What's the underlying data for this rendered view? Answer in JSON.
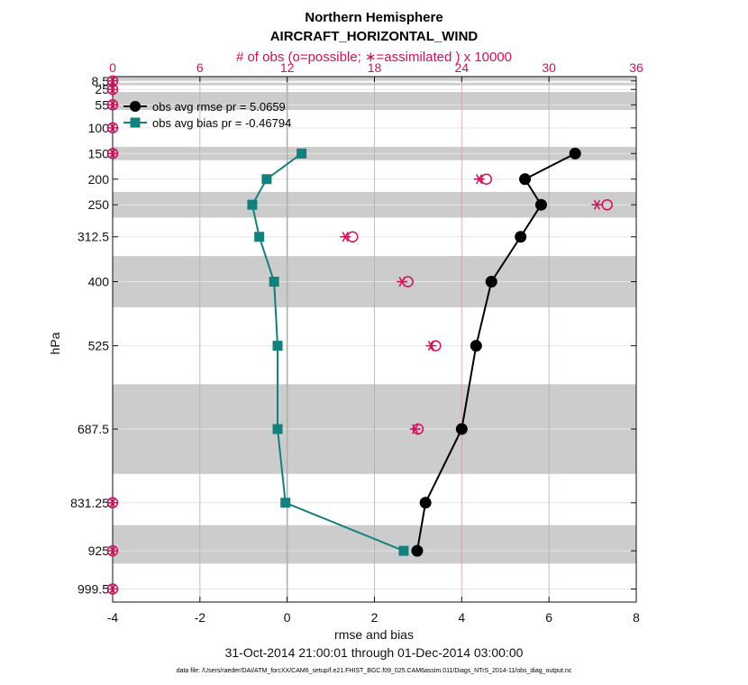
{
  "chart_data": {
    "type": "line",
    "title": "Northern Hemisphere",
    "subtitle": "AIRCRAFT_HORIZONTAL_WIND",
    "top_axis_label": "# of obs (o=possible; ∗=assimilated ) x 10000",
    "xlabel": "rmse and bias",
    "ylabel": "hPa",
    "date_range": "31-Oct-2014 21:00:01 through 01-Dec-2014 03:00:00",
    "footnote": "data file: /Users/raeder/DAI/ATM_forcXX/CAM6_setup/f.e21.FHIST_BGC.f09_025.CAM6assim.011/Diags_NTrS_2014-11/obs_diag_output.nc",
    "xlim": [
      -4,
      8
    ],
    "x_ticks": [
      -4,
      -2,
      0,
      2,
      4,
      6,
      8
    ],
    "top_xlim": [
      0,
      36
    ],
    "top_ticks": [
      0,
      6,
      12,
      18,
      24,
      30,
      36
    ],
    "ylim": [
      1025,
      0
    ],
    "y_tick_labels": [
      "8.5",
      "25",
      "55",
      "100",
      "150",
      "200",
      "250",
      "312.5",
      "400",
      "525",
      "687.5",
      "831.25",
      "925",
      "999.5"
    ],
    "y_ticks": [
      8.5,
      25,
      55,
      100,
      150,
      200,
      250,
      312.5,
      400,
      525,
      687.5,
      831.25,
      925,
      999.5
    ],
    "layer_bands": [
      [
        0,
        3.5
      ],
      [
        3.5,
        8
      ],
      [
        12,
        17
      ],
      [
        30,
        65
      ],
      [
        137,
        163
      ],
      [
        225,
        275
      ],
      [
        350,
        450
      ],
      [
        600,
        775
      ],
      [
        875,
        950
      ]
    ],
    "levels": [
      150,
      200,
      250,
      312.5,
      400,
      525,
      687.5,
      831.25,
      925
    ],
    "series": [
      {
        "name": "obs avg rmse",
        "legend": "obs avg rmse  pr = 5.0659",
        "color": "#000000",
        "marker": "circle",
        "values": [
          6.6,
          5.45,
          5.82,
          5.35,
          4.68,
          4.33,
          4.0,
          3.17,
          2.98
        ]
      },
      {
        "name": "obs avg bias",
        "legend": "obs avg bias  pr = -0.46794",
        "color": "#12807c",
        "marker": "square",
        "values": [
          0.33,
          -0.47,
          -0.8,
          -0.64,
          -0.3,
          -0.22,
          -0.22,
          -0.04,
          2.67
        ]
      }
    ],
    "obs_possible": {
      "levels": [
        8.5,
        25,
        55,
        100,
        150,
        200,
        250,
        312.5,
        400,
        525,
        687.5,
        831.25,
        925,
        999.5
      ],
      "values": [
        0,
        0,
        0,
        0,
        0,
        25.7,
        34.0,
        16.5,
        20.3,
        22.2,
        21.0,
        0,
        0,
        0
      ]
    },
    "obs_assimilated": {
      "levels": [
        8.5,
        25,
        55,
        100,
        150,
        200,
        250,
        312.5,
        400,
        525,
        687.5,
        831.25,
        925,
        999.5
      ],
      "values": [
        0,
        0,
        0,
        0,
        0,
        25.2,
        33.3,
        16.0,
        19.9,
        21.9,
        20.8,
        0,
        0,
        0
      ]
    }
  }
}
